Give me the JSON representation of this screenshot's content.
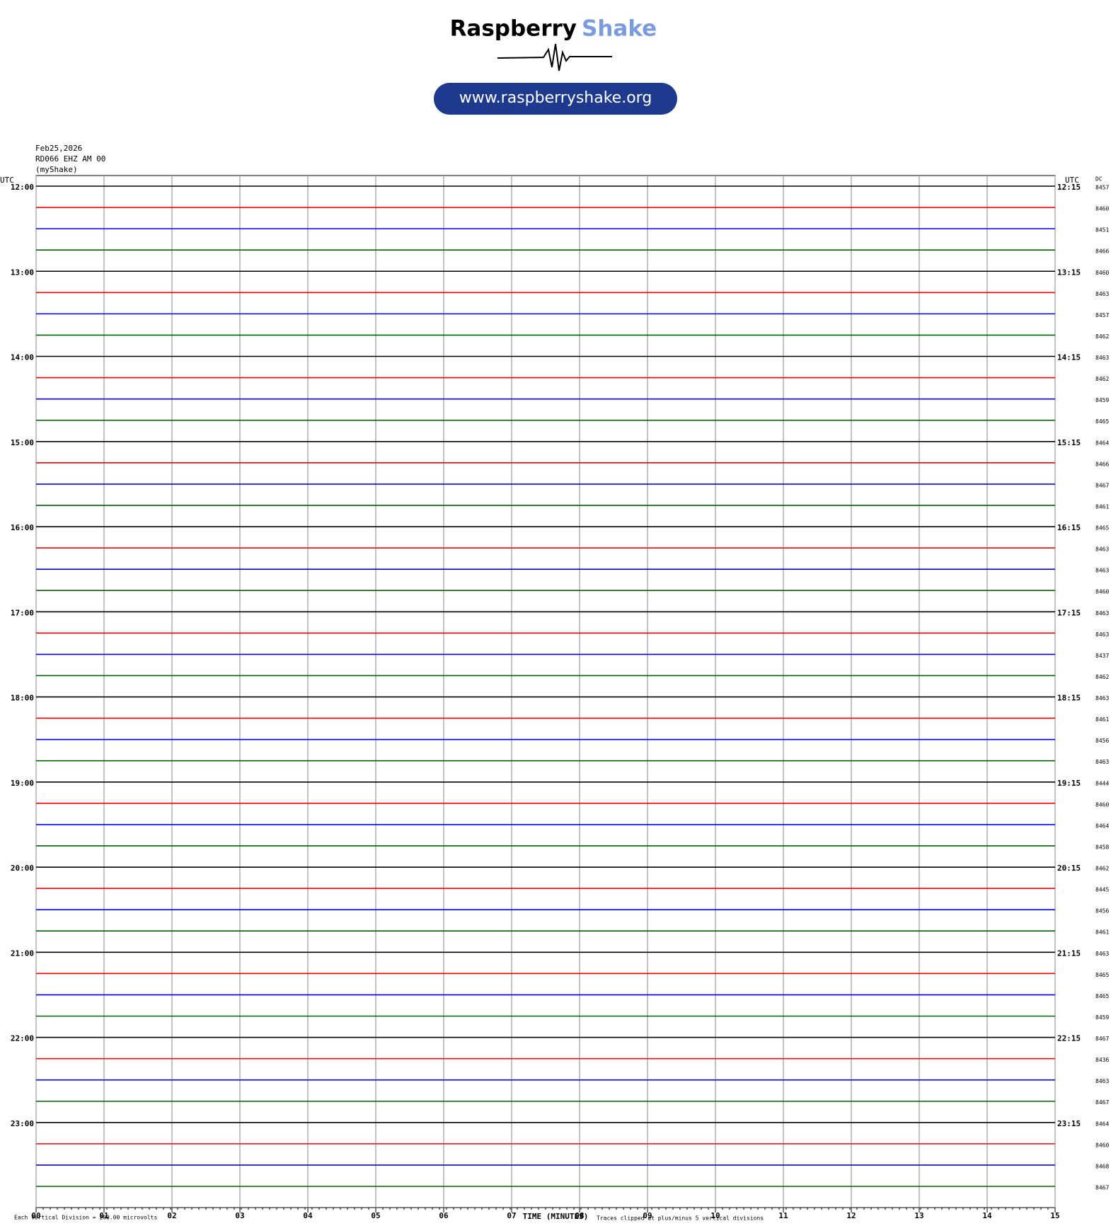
{
  "header": {
    "brand_first": "Raspberry",
    "brand_second": "Shake",
    "url": "www.raspberryshake.org"
  },
  "station": {
    "date": "Feb25,2026",
    "channel": "RD066 EHZ AM 00",
    "network": "(myShake)"
  },
  "axes": {
    "left_unit": "UTC",
    "right_unit": "UTC",
    "dc_header": "DC",
    "x_title": "TIME (MINUTES)",
    "xlim": [
      0,
      15
    ],
    "xticks": [
      {
        "value": 0,
        "label": "00"
      },
      {
        "value": 1,
        "label": "01"
      },
      {
        "value": 2,
        "label": "02"
      },
      {
        "value": 3,
        "label": "03"
      },
      {
        "value": 4,
        "label": "04"
      },
      {
        "value": 5,
        "label": "05"
      },
      {
        "value": 6,
        "label": "06"
      },
      {
        "value": 7,
        "label": "07"
      },
      {
        "value": 8,
        "label": "08"
      },
      {
        "value": 9,
        "label": "09"
      },
      {
        "value": 10,
        "label": "10"
      },
      {
        "value": 11,
        "label": "11"
      },
      {
        "value": 12,
        "label": "12"
      },
      {
        "value": 13,
        "label": "13"
      },
      {
        "value": 14,
        "label": "14"
      },
      {
        "value": 15,
        "label": "15"
      }
    ],
    "grid": true
  },
  "trace_colors": [
    "#000000",
    "#ff0000",
    "#0000ff",
    "#006400"
  ],
  "hour_labels": [
    {
      "left": "12:00",
      "right": "12:15"
    },
    {
      "left": "13:00",
      "right": "13:15"
    },
    {
      "left": "14:00",
      "right": "14:15"
    },
    {
      "left": "15:00",
      "right": "15:15"
    },
    {
      "left": "16:00",
      "right": "16:15"
    },
    {
      "left": "17:00",
      "right": "17:15"
    },
    {
      "left": "18:00",
      "right": "18:15"
    },
    {
      "left": "19:00",
      "right": "19:15"
    },
    {
      "left": "20:00",
      "right": "20:15"
    },
    {
      "left": "21:00",
      "right": "21:15"
    },
    {
      "left": "22:00",
      "right": "22:15"
    },
    {
      "left": "23:00",
      "right": "23:15"
    }
  ],
  "dc_values": [
    8457,
    8460,
    8451,
    8466,
    8460,
    8463,
    8457,
    8462,
    8463,
    8462,
    8459,
    8465,
    8464,
    8466,
    8467,
    8461,
    8465,
    8463,
    8463,
    8460,
    8463,
    8463,
    8437,
    8462,
    8463,
    8461,
    8456,
    8463,
    8444,
    8460,
    8464,
    8458,
    8462,
    8445,
    8456,
    8461,
    8463,
    8465,
    8465,
    8459,
    8467,
    8436,
    8463,
    8467,
    8464,
    8460,
    8468,
    8467
  ],
  "footer": {
    "scale_note": "Each Vertical Division =  200.00 microvolts",
    "clip_note": "Traces clipped at plus/minus 5 vertical divisions"
  }
}
